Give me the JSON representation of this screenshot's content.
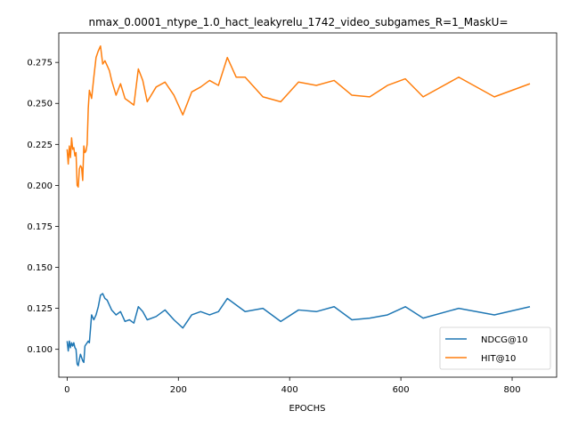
{
  "chart_data": {
    "type": "line",
    "title": "nmax_0.0001_ntype_1.0_hact_leakyrelu_1742_video_subgames_R=1_MaskU=",
    "xlabel": "EPOCHS",
    "ylabel": "",
    "xlim": [
      -15,
      880
    ],
    "ylim": [
      0.083,
      0.293
    ],
    "xticks": [
      0,
      200,
      400,
      600,
      800
    ],
    "yticks": [
      0.1,
      0.125,
      0.15,
      0.175,
      0.2,
      0.225,
      0.25,
      0.275
    ],
    "ytick_labels": [
      "0.100",
      "0.125",
      "0.150",
      "0.175",
      "0.200",
      "0.225",
      "0.250",
      "0.275"
    ],
    "grid": false,
    "legend_position": "lower-right",
    "series": [
      {
        "name": "NDCG@10",
        "color": "#1f77b4",
        "x": [
          0,
          2,
          4,
          6,
          8,
          10,
          12,
          14,
          16,
          18,
          20,
          22,
          24,
          26,
          28,
          30,
          32,
          34,
          36,
          38,
          40,
          44,
          48,
          52,
          56,
          60,
          64,
          68,
          72,
          76,
          80,
          88,
          96,
          104,
          112,
          120,
          128,
          136,
          144,
          160,
          176,
          192,
          208,
          224,
          240,
          256,
          272,
          288,
          304,
          320,
          352,
          384,
          416,
          448,
          480,
          512,
          544,
          576,
          608,
          640,
          704,
          768,
          832
        ],
        "y": [
          0.105,
          0.099,
          0.105,
          0.101,
          0.104,
          0.102,
          0.104,
          0.101,
          0.1,
          0.091,
          0.09,
          0.094,
          0.097,
          0.095,
          0.093,
          0.092,
          0.102,
          0.103,
          0.104,
          0.105,
          0.104,
          0.121,
          0.118,
          0.121,
          0.126,
          0.133,
          0.134,
          0.131,
          0.13,
          0.127,
          0.124,
          0.121,
          0.123,
          0.117,
          0.118,
          0.116,
          0.126,
          0.123,
          0.118,
          0.12,
          0.124,
          0.118,
          0.113,
          0.121,
          0.123,
          0.121,
          0.123,
          0.131,
          0.127,
          0.123,
          0.125,
          0.117,
          0.124,
          0.123,
          0.126,
          0.118,
          0.119,
          0.121,
          0.126,
          0.119,
          0.125,
          0.121,
          0.126
        ]
      },
      {
        "name": "HIT@10",
        "color": "#ff7f0e",
        "x": [
          0,
          2,
          4,
          6,
          8,
          10,
          12,
          14,
          16,
          18,
          20,
          22,
          24,
          26,
          28,
          30,
          32,
          34,
          36,
          38,
          40,
          44,
          48,
          52,
          56,
          60,
          64,
          68,
          72,
          76,
          80,
          88,
          96,
          104,
          112,
          120,
          128,
          136,
          144,
          160,
          176,
          192,
          208,
          224,
          240,
          256,
          272,
          288,
          304,
          320,
          352,
          384,
          416,
          448,
          480,
          512,
          544,
          576,
          608,
          640,
          704,
          768,
          832
        ],
        "y": [
          0.222,
          0.213,
          0.224,
          0.217,
          0.229,
          0.222,
          0.223,
          0.218,
          0.22,
          0.2,
          0.199,
          0.21,
          0.212,
          0.211,
          0.203,
          0.224,
          0.22,
          0.221,
          0.225,
          0.247,
          0.258,
          0.253,
          0.266,
          0.278,
          0.282,
          0.285,
          0.274,
          0.276,
          0.273,
          0.27,
          0.264,
          0.255,
          0.262,
          0.253,
          0.251,
          0.249,
          0.271,
          0.264,
          0.251,
          0.26,
          0.263,
          0.255,
          0.243,
          0.257,
          0.26,
          0.264,
          0.261,
          0.278,
          0.266,
          0.266,
          0.254,
          0.251,
          0.263,
          0.261,
          0.264,
          0.255,
          0.254,
          0.261,
          0.265,
          0.254,
          0.266,
          0.254,
          0.262
        ]
      }
    ]
  }
}
